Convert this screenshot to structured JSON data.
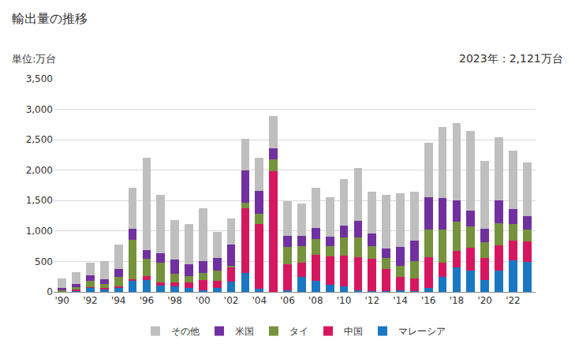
{
  "chart_data": {
    "type": "bar",
    "title": "輸出量の推移",
    "y_label": "単位:万台",
    "annotations": [
      {
        "text": "2023年：2,121万台"
      }
    ],
    "stacked": true,
    "grid": true,
    "legend": "bottom",
    "categories": [
      "'90",
      null,
      "'92",
      null,
      "'94",
      null,
      "'96",
      null,
      "'98",
      null,
      "'00",
      null,
      "'02",
      null,
      "'04",
      null,
      "'06",
      null,
      "'08",
      null,
      "'10",
      null,
      "'12",
      null,
      "'14",
      null,
      "'16",
      null,
      "'18",
      null,
      "'20",
      null,
      "'22",
      null
    ],
    "series": [
      {
        "name": "マレーシア",
        "color": "#1a78c2",
        "values": [
          0,
          20,
          70,
          40,
          70,
          180,
          190,
          100,
          90,
          60,
          30,
          60,
          170,
          310,
          50,
          0,
          20,
          250,
          180,
          120,
          90,
          30,
          10,
          10,
          20,
          10,
          60,
          240,
          400,
          350,
          200,
          350,
          520,
          490
        ]
      },
      {
        "name": "中国",
        "color": "#d6175f",
        "values": [
          10,
          20,
          10,
          20,
          20,
          30,
          70,
          50,
          60,
          90,
          170,
          120,
          240,
          1060,
          1060,
          1980,
          430,
          230,
          430,
          460,
          500,
          540,
          540,
          360,
          230,
          210,
          510,
          240,
          280,
          380,
          360,
          410,
          320,
          340
        ]
      },
      {
        "name": "タイ",
        "color": "#76923c",
        "values": [
          10,
          40,
          100,
          70,
          150,
          650,
          280,
          330,
          150,
          110,
          110,
          170,
          20,
          90,
          170,
          200,
          290,
          270,
          260,
          170,
          300,
          330,
          200,
          190,
          180,
          290,
          460,
          550,
          470,
          340,
          260,
          370,
          270,
          200
        ]
      },
      {
        "name": "米国",
        "color": "#7030a0",
        "values": [
          50,
          50,
          90,
          80,
          130,
          180,
          150,
          160,
          230,
          190,
          200,
          210,
          350,
          530,
          380,
          180,
          180,
          170,
          180,
          160,
          200,
          270,
          210,
          150,
          310,
          330,
          530,
          510,
          360,
          270,
          220,
          380,
          250,
          210
        ]
      },
      {
        "name": "その他",
        "color": "#bfbfbf",
        "values": [
          150,
          200,
          210,
          290,
          410,
          670,
          1510,
          960,
          650,
          660,
          870,
          420,
          420,
          530,
          540,
          530,
          570,
          530,
          660,
          650,
          760,
          870,
          680,
          880,
          880,
          800,
          890,
          1170,
          1270,
          1310,
          1110,
          1030,
          960,
          881
        ]
      }
    ],
    "ylim": [
      0,
      3500
    ],
    "yticks": [
      0,
      500,
      {
        "value": 1000,
        "label": "1,000"
      },
      {
        "value": 1500,
        "label": "1,500"
      },
      {
        "value": 2000,
        "label": "2,000"
      },
      {
        "value": 2500,
        "label": "2,500"
      },
      {
        "value": 3000,
        "label": "3,000"
      },
      {
        "value": 3500,
        "label": "3,500"
      }
    ]
  }
}
